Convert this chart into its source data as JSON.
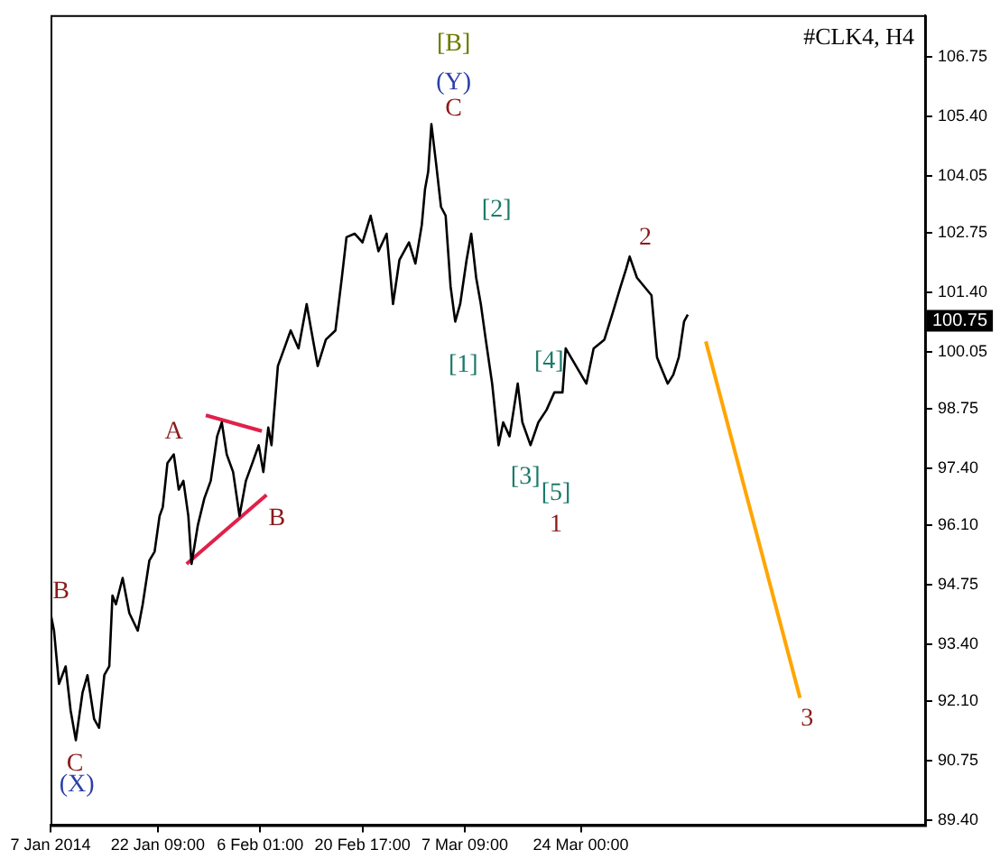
{
  "chart_data": {
    "type": "line",
    "title": "#CLK4, H4",
    "xlim": [
      "2014-01-07T00:00",
      "2014-05-12T08:00"
    ],
    "xticks": [
      {
        "value": "2014-01-07T00:00",
        "label": "7 Jan 2014"
      },
      {
        "value": "2014-01-22T09:00",
        "label": "22 Jan 09:00"
      },
      {
        "value": "2014-02-06T01:00",
        "label": "6 Feb 01:00"
      },
      {
        "value": "2014-02-20T17:00",
        "label": "20 Feb 17:00"
      },
      {
        "value": "2014-03-07T09:00",
        "label": "7 Mar 09:00"
      },
      {
        "value": "2014-03-24T00:00",
        "label": "24 Mar 00:00"
      }
    ],
    "ylim": [
      89.28,
      107.7
    ],
    "yticks": [
      {
        "value": 89.4,
        "label": "89.40"
      },
      {
        "value": 90.75,
        "label": "90.75"
      },
      {
        "value": 92.1,
        "label": "92.10"
      },
      {
        "value": 93.4,
        "label": "93.40"
      },
      {
        "value": 94.75,
        "label": "94.75"
      },
      {
        "value": 96.1,
        "label": "96.10"
      },
      {
        "value": 97.4,
        "label": "97.40"
      },
      {
        "value": 98.75,
        "label": "98.75"
      },
      {
        "value": 100.05,
        "label": "100.05"
      },
      {
        "value": 101.4,
        "label": "101.40"
      },
      {
        "value": 102.75,
        "label": "102.75"
      },
      {
        "value": 104.05,
        "label": "104.05"
      },
      {
        "value": 105.4,
        "label": "105.40"
      },
      {
        "value": 106.75,
        "label": "106.75"
      }
    ],
    "grid": false,
    "legend": false,
    "marker": "none",
    "line_style": "solid",
    "series": [
      {
        "color": "#000000",
        "x": [
          "2014-01-07T00:00",
          "2014-01-07T12:00",
          "2014-01-08T05:00",
          "2014-01-09T04:00",
          "2014-01-09T21:00",
          "2014-01-10T15:00",
          "2014-01-11T14:00",
          "2014-01-12T07:00",
          "2014-01-13T06:00",
          "2014-01-13T23:00",
          "2014-01-14T17:00",
          "2014-01-15T10:00",
          "2014-01-15T21:00",
          "2014-01-16T09:00",
          "2014-01-17T08:00",
          "2014-01-18T07:00",
          "2014-01-19T12:00",
          "2014-01-20T05:00",
          "2014-01-21T04:00",
          "2014-01-21T22:00",
          "2014-01-22T15:00",
          "2014-01-23T02:00",
          "2014-01-23T18:00",
          "2014-01-24T16:00",
          "2014-01-25T09:00",
          "2014-01-26T01:00",
          "2014-01-26T18:00",
          "2014-01-27T05:00",
          "2014-01-28T03:00",
          "2014-01-29T01:00",
          "2014-01-29T23:00",
          "2014-01-30T21:00",
          "2014-01-31T13:00",
          "2014-02-01T06:00",
          "2014-02-02T04:00",
          "2014-02-03T02:00",
          "2014-02-04T00:00",
          "2014-02-04T22:00",
          "2014-02-05T20:00",
          "2014-02-06T12:00",
          "2014-02-07T05:00",
          "2014-02-07T16:00",
          "2014-02-08T14:00",
          "2014-02-09T12:00",
          "2014-02-10T10:00",
          "2014-02-11T13:00",
          "2014-02-12T17:00",
          "2014-02-13T09:00",
          "2014-02-14T07:00",
          "2014-02-15T11:00",
          "2014-02-16T20:00",
          "2014-02-17T18:00",
          "2014-02-18T10:00",
          "2014-02-19T14:00",
          "2014-02-20T17:00",
          "2014-02-21T21:00",
          "2014-02-23T00:00",
          "2014-02-24T04:00",
          "2014-02-25T02:00",
          "2014-02-26T00:00",
          "2014-02-27T09:00",
          "2014-02-28T07:00",
          "2014-03-01T05:00",
          "2014-03-01T16:00",
          "2014-03-02T03:00",
          "2014-03-02T14:00",
          "2014-03-03T06:00",
          "2014-03-03T23:00",
          "2014-03-04T15:00",
          "2014-03-05T08:00",
          "2014-03-06T00:00",
          "2014-03-06T17:00",
          "2014-03-07T15:00",
          "2014-03-08T07:00",
          "2014-03-09T00:00",
          "2014-03-09T16:00",
          "2014-03-10T09:00",
          "2014-03-11T07:00",
          "2014-03-12T05:00",
          "2014-03-12T21:00",
          "2014-03-13T19:00",
          "2014-03-14T23:00",
          "2014-03-15T15:00",
          "2014-03-16T19:00",
          "2014-03-17T22:00",
          "2014-03-19T02:00",
          "2014-03-20T05:00",
          "2014-03-21T09:00",
          "2014-03-21T20:00",
          "2014-03-24T19:00",
          "2014-03-25T20:00",
          "2014-03-27T09:00",
          "2014-03-28T10:00",
          "2014-03-29T17:00",
          "2014-03-30T12:00",
          "2014-03-31T00:00",
          "2014-04-01T01:00",
          "2014-04-02T02:00",
          "2014-04-03T03:00",
          "2014-04-03T22:00",
          "2014-04-04T10:00",
          "2014-04-05T11:00",
          "2014-04-06T06:00",
          "2014-04-07T01:00",
          "2014-04-07T19:00",
          "2014-04-08T08:00"
        ],
        "values": [
          94.1,
          93.7,
          92.49,
          92.89,
          91.89,
          91.21,
          92.29,
          92.69,
          91.69,
          91.49,
          92.69,
          92.89,
          94.5,
          94.3,
          94.9,
          94.1,
          93.7,
          94.3,
          95.3,
          95.5,
          96.31,
          96.51,
          97.51,
          97.71,
          96.91,
          97.11,
          96.31,
          95.22,
          96.11,
          96.71,
          97.11,
          98.12,
          98.44,
          97.71,
          97.31,
          96.31,
          97.11,
          97.51,
          97.92,
          97.31,
          98.32,
          97.92,
          99.72,
          100.12,
          100.53,
          100.12,
          101.13,
          100.53,
          99.72,
          100.32,
          100.53,
          101.73,
          102.65,
          102.73,
          102.53,
          103.14,
          102.33,
          102.73,
          101.13,
          102.13,
          102.53,
          102.05,
          102.93,
          103.74,
          104.14,
          105.22,
          104.34,
          103.34,
          103.14,
          101.53,
          100.73,
          101.13,
          102.13,
          102.73,
          101.73,
          101.13,
          100.32,
          99.32,
          97.92,
          98.44,
          98.12,
          99.32,
          98.44,
          97.92,
          98.44,
          98.72,
          99.12,
          99.12,
          100.12,
          99.32,
          100.12,
          100.32,
          100.85,
          101.53,
          101.93,
          102.21,
          101.73,
          101.53,
          101.33,
          99.92,
          99.72,
          99.32,
          99.52,
          99.92,
          100.73,
          100.89
        ]
      },
      {
        "color": "#e0204a",
        "x": [
          "2014-01-29T06:00",
          "2014-02-06T07:00"
        ],
        "values": [
          98.6,
          98.24
        ]
      },
      {
        "color": "#e0204a",
        "x": [
          "2014-01-26T12:00",
          "2014-02-06T23:00"
        ],
        "values": [
          95.22,
          96.79
        ]
      },
      {
        "color": "#ffa500",
        "x": [
          "2014-04-10T22:00",
          "2014-04-24T10:00"
        ],
        "values": [
          100.28,
          92.17
        ]
      }
    ],
    "annotations": [
      "[B]",
      "(Y)",
      "C",
      "[2]",
      "[1]",
      "[4]",
      "[3]",
      "[5]",
      "1",
      "2",
      "3",
      "A",
      "B",
      "B",
      "C",
      "(X)",
      "100.75"
    ]
  }
}
